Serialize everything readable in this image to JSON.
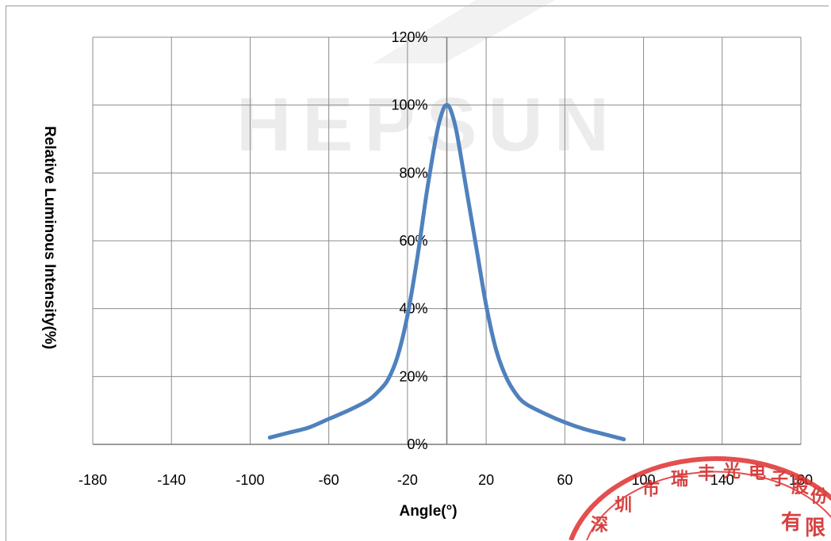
{
  "chart_data": {
    "type": "line",
    "title": "",
    "xlabel": "Angle(°)",
    "ylabel": "Relative Luminous Intensity(%)",
    "xlim": [
      -180,
      180
    ],
    "ylim": [
      0,
      120
    ],
    "x_ticks": [
      -180,
      -140,
      -100,
      -60,
      -20,
      20,
      60,
      100,
      140,
      180
    ],
    "x_tick_labels": [
      "-180",
      "-140",
      "-100",
      "-60",
      "-20",
      "20",
      "60",
      "100",
      "140",
      "180"
    ],
    "y_ticks": [
      0,
      20,
      40,
      60,
      80,
      100,
      120
    ],
    "y_tick_labels": [
      "0%",
      "20%",
      "40%",
      "60%",
      "80%",
      "100%",
      "120%"
    ],
    "grid": true,
    "series": [
      {
        "color": "#4f81bd",
        "x": [
          -90,
          -80,
          -70,
          -60,
          -50,
          -40,
          -35,
          -30,
          -25,
          -20,
          -15,
          -10,
          -5,
          -2,
          0,
          2,
          5,
          10,
          15,
          20,
          25,
          30,
          35,
          40,
          50,
          60,
          70,
          80,
          90
        ],
        "y": [
          2,
          3.5,
          5,
          7.5,
          10,
          13,
          15.5,
          19,
          26,
          38,
          55,
          75,
          92,
          98.5,
          100,
          98.5,
          92,
          75,
          58,
          41,
          28,
          20,
          15,
          12,
          9,
          6.5,
          4.5,
          3,
          1.5
        ]
      }
    ]
  },
  "watermark": {
    "text": "HEPSUN"
  },
  "stamp": {
    "text": "深圳市瑞丰光电子股份有限公司",
    "color": "#e03030"
  }
}
